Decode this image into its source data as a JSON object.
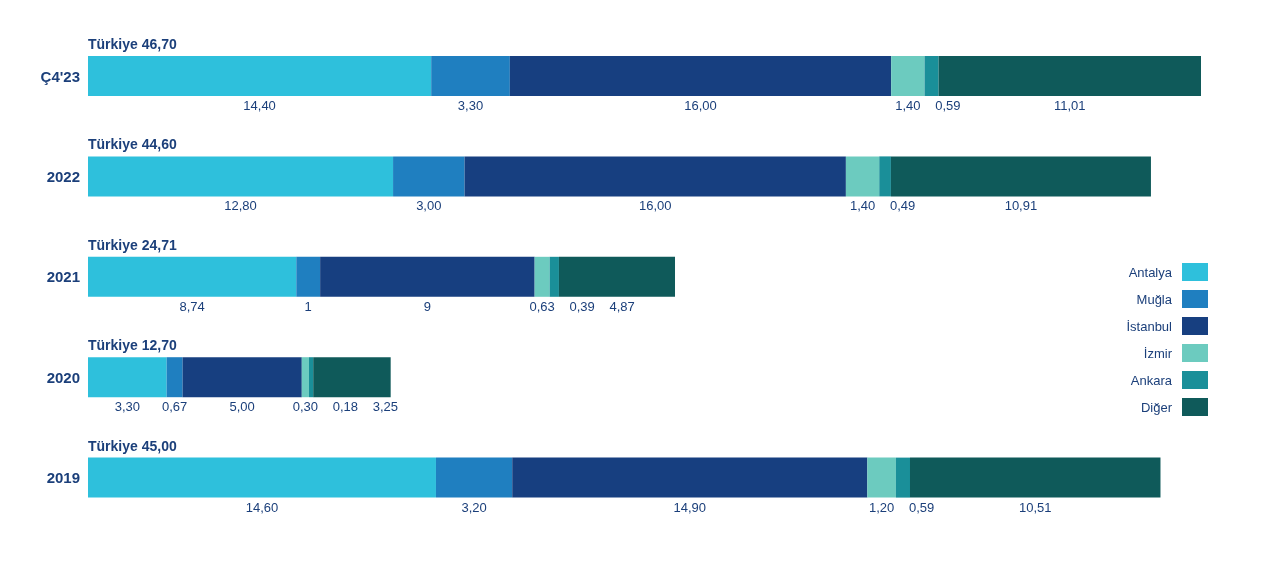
{
  "chart_data": {
    "type": "bar",
    "orientation": "horizontal",
    "stacked": true,
    "legend": "right",
    "categories": [
      "Ç4'23",
      "2022",
      "2021",
      "2020",
      "2019"
    ],
    "totals": [
      "Türkiye 46,70",
      "Türkiye 44,60",
      "Türkiye 24,71",
      "Türkiye 12,70",
      "Türkiye 45,00"
    ],
    "series": [
      {
        "name": "Antalya",
        "color": "#2ec0dc",
        "values": [
          14.4,
          12.8,
          8.74,
          3.3,
          14.6
        ],
        "value_labels": [
          "14,40",
          "12,80",
          "8,74",
          "3,30",
          "14,60"
        ]
      },
      {
        "name": "Muğla",
        "color": "#1f7fc0",
        "values": [
          3.3,
          3.0,
          1,
          0.67,
          3.2
        ],
        "value_labels": [
          "3,30",
          "3,00",
          "1",
          "0,67",
          "3,20"
        ]
      },
      {
        "name": "İstanbul",
        "color": "#173f80",
        "values": [
          16.0,
          16.0,
          9,
          5.0,
          14.9
        ],
        "value_labels": [
          "16,00",
          "16,00",
          "9",
          "5,00",
          "14,90"
        ]
      },
      {
        "name": "İzmir",
        "color": "#6ccbbf",
        "values": [
          1.4,
          1.4,
          0.63,
          0.3,
          1.2
        ],
        "value_labels": [
          "1,40",
          "1,40",
          "0,63",
          "0,30",
          "1,20"
        ]
      },
      {
        "name": "Ankara",
        "color": "#1a8f99",
        "values": [
          0.59,
          0.49,
          0.39,
          0.18,
          0.59
        ],
        "value_labels": [
          "0,59",
          "0,49",
          "0,39",
          "0,18",
          "0,59"
        ]
      },
      {
        "name": "Diğer",
        "color": "#0f5a5a",
        "values": [
          11.01,
          10.91,
          4.87,
          3.25,
          10.51
        ],
        "value_labels": [
          "11,01",
          "10,91",
          "4,87",
          "3,25",
          "10,51"
        ]
      }
    ]
  }
}
